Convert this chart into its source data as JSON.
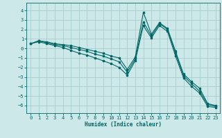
{
  "xlabel": "Humidex (Indice chaleur)",
  "background_color": "#cce8e8",
  "grid_color": "#aacccc",
  "line_color": "#006666",
  "xlim": [
    -0.5,
    23.5
  ],
  "ylim": [
    -6.8,
    4.8
  ],
  "xticks": [
    0,
    1,
    2,
    3,
    4,
    5,
    6,
    7,
    8,
    9,
    10,
    11,
    12,
    13,
    14,
    15,
    16,
    17,
    18,
    19,
    20,
    21,
    22,
    23
  ],
  "yticks": [
    -6,
    -5,
    -4,
    -3,
    -2,
    -1,
    0,
    1,
    2,
    3,
    4
  ],
  "series": [
    [
      0.5,
      0.8,
      0.7,
      0.5,
      0.4,
      0.3,
      0.1,
      -0.1,
      -0.3,
      -0.5,
      -0.8,
      -1.0,
      -2.2,
      -0.9,
      3.8,
      1.5,
      2.7,
      2.1,
      -0.3,
      -2.7,
      -3.5,
      -4.2,
      -5.8,
      -6.0
    ],
    [
      0.5,
      0.8,
      0.6,
      0.4,
      0.3,
      0.1,
      -0.1,
      -0.3,
      -0.6,
      -0.8,
      -1.1,
      -1.4,
      -2.5,
      -1.1,
      2.8,
      1.3,
      2.6,
      2.0,
      -0.5,
      -2.9,
      -3.7,
      -4.5,
      -5.9,
      -6.1
    ],
    [
      0.5,
      0.7,
      0.5,
      0.3,
      0.1,
      -0.2,
      -0.5,
      -0.7,
      -1.0,
      -1.3,
      -1.6,
      -2.0,
      -2.8,
      -1.3,
      2.4,
      1.1,
      2.4,
      1.8,
      -0.8,
      -3.1,
      -4.0,
      -4.7,
      -6.1,
      -6.2
    ]
  ]
}
